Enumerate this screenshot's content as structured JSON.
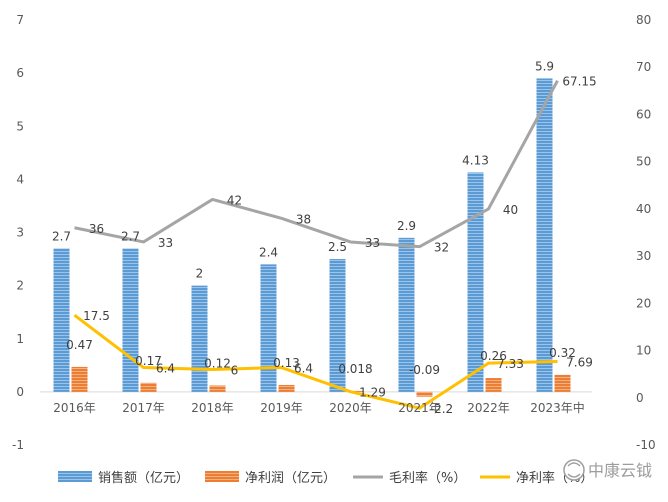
{
  "chart_data": {
    "type": "bar",
    "categories": [
      "2016年",
      "2017年",
      "2018年",
      "2019年",
      "2020年",
      "2021年",
      "2022年",
      "2023年中"
    ],
    "series": [
      {
        "name": "销售额（亿元）",
        "kind": "bar",
        "axis": "left",
        "color": "#5b9bd5",
        "values": [
          2.7,
          2.7,
          2,
          2.4,
          2.5,
          2.9,
          4.13,
          5.9
        ],
        "labels": [
          "2.7",
          "2.7",
          "2",
          "2.4",
          "2.5",
          "2.9",
          "4.13",
          "5.9"
        ]
      },
      {
        "name": "净利润（亿元）",
        "kind": "bar",
        "axis": "left",
        "color": "#ed7d31",
        "values": [
          0.47,
          0.17,
          0.12,
          0.13,
          0.018,
          -0.09,
          0.26,
          0.32
        ],
        "labels": [
          "0.47",
          "0.17",
          "0.12",
          "0.13",
          "0.018",
          "-0.09",
          "0.26",
          "0.32"
        ]
      },
      {
        "name": "毛利率（%）",
        "kind": "line",
        "axis": "right",
        "color": "#a5a5a5",
        "values": [
          36,
          33,
          42,
          38,
          33,
          32,
          40,
          67.15
        ],
        "labels": [
          "36",
          "33",
          "42",
          "38",
          "33",
          "32",
          "40",
          "67.15"
        ]
      },
      {
        "name": "净利率（%）",
        "kind": "line",
        "axis": "right",
        "color": "#ffc000",
        "values": [
          17.5,
          6.4,
          6,
          6.4,
          1.29,
          -2.2,
          7.33,
          7.69
        ],
        "labels": [
          "17.5",
          "6.4",
          "6",
          "6.4",
          "1.29",
          "-2.2",
          "7.33",
          "7.69"
        ]
      }
    ],
    "y_left": {
      "ylim": [
        -1,
        7
      ],
      "ticks": [
        "-1",
        "0",
        "1",
        "2",
        "3",
        "4",
        "5",
        "6",
        "7"
      ]
    },
    "y_right": {
      "ylim": [
        -10,
        80
      ],
      "ticks": [
        "-10",
        "0",
        "10",
        "20",
        "30",
        "40",
        "50",
        "60",
        "70",
        "80"
      ]
    },
    "legend_position": "bottom",
    "grid": false
  },
  "watermark": "中康云钺"
}
